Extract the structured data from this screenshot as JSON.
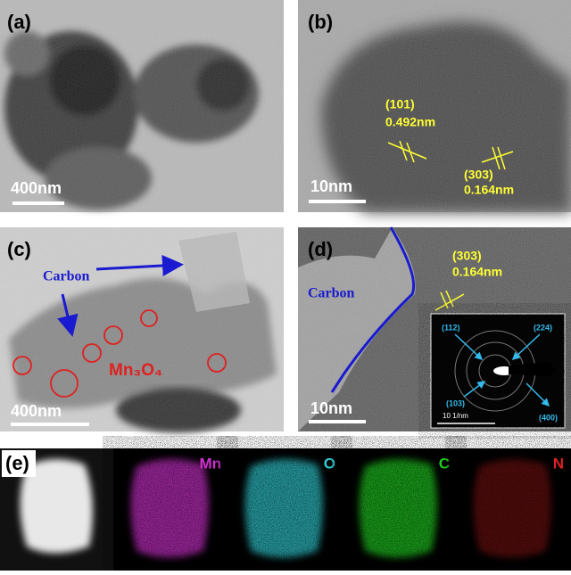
{
  "panel_a": {
    "label": "(a)",
    "scale_bar": "400nm"
  },
  "panel_b": {
    "label": "(b)",
    "plane_1": "(101)",
    "spacing_1": "0.492nm",
    "plane_2": "(303)",
    "spacing_2": "0.164nm",
    "scale_bar": "10nm"
  },
  "panel_c": {
    "label": "(c)",
    "carbon": "Carbon",
    "phase": "Mn₃O₄",
    "scale_bar": "400nm"
  },
  "panel_d": {
    "label": "(d)",
    "carbon": "Carbon",
    "plane": "(303)",
    "spacing": "0.164nm",
    "saed": {
      "spot_1": "(112)",
      "spot_2": "(224)",
      "spot_3": "(103)",
      "spot_4": "(400)",
      "scale_bar": "10 1/nm"
    },
    "scale_bar": "10nm"
  },
  "panel_e": {
    "label": "(e)",
    "maps": [
      "Mn",
      "O",
      "C",
      "N"
    ]
  }
}
